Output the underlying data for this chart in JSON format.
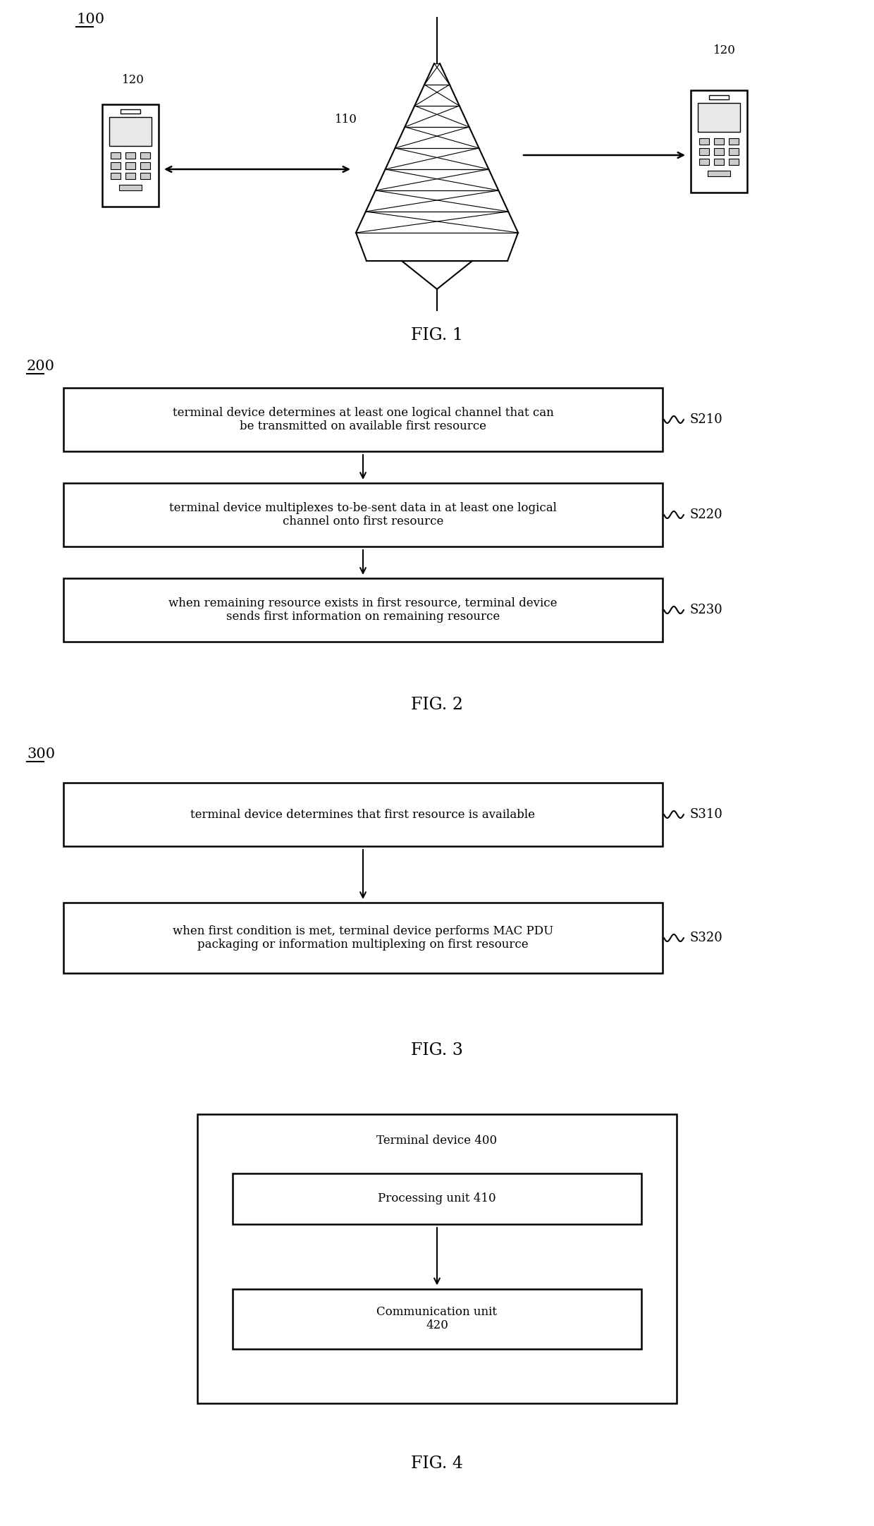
{
  "bg_color": "#ffffff",
  "fig_width": 12.4,
  "fig_height": 21.64,
  "fig1": {
    "label": "100",
    "fig_caption": "FIG. 1",
    "tower_label": "110",
    "phone_left_label": "120",
    "phone_right_label": "120"
  },
  "fig2": {
    "label": "200",
    "fig_caption": "FIG. 2",
    "steps": [
      {
        "id": "S210",
        "text": "terminal device determines at least one logical channel that can\nbe transmitted on available first resource"
      },
      {
        "id": "S220",
        "text": "terminal device multiplexes to-be-sent data in at least one logical\nchannel onto first resource"
      },
      {
        "id": "S230",
        "text": "when remaining resource exists in first resource, terminal device\nsends first information on remaining resource"
      }
    ]
  },
  "fig3": {
    "label": "300",
    "fig_caption": "FIG. 3",
    "steps": [
      {
        "id": "S310",
        "text": "terminal device determines that first resource is available"
      },
      {
        "id": "S320",
        "text": "when first condition is met, terminal device performs MAC PDU\npackaging or information multiplexing on first resource"
      }
    ]
  },
  "fig4": {
    "fig_caption": "FIG. 4",
    "outer_label": "Terminal device 400",
    "inner_boxes": [
      {
        "label": "Processing unit 410"
      },
      {
        "label": "Communication unit\n420"
      }
    ]
  }
}
